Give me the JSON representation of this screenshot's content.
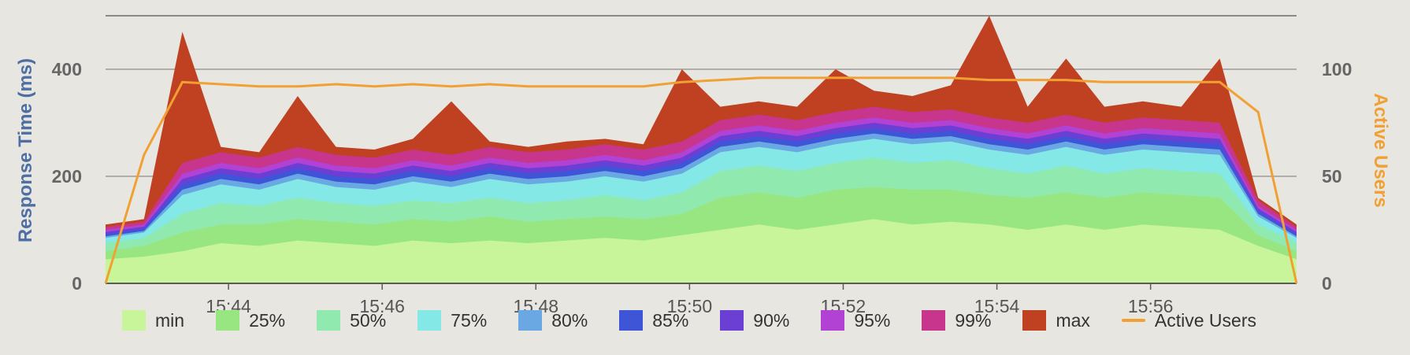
{
  "chart_data": {
    "type": "area",
    "title": "",
    "ylabel": "Response Time (ms)",
    "y2label": "Active Users",
    "ylim": [
      0,
      500
    ],
    "y2lim": [
      0,
      125
    ],
    "yticks": [
      0,
      200,
      400
    ],
    "y2ticks": [
      0,
      50,
      100
    ],
    "xlim": [
      "15:42:24",
      "15:57:54"
    ],
    "xticks": [
      "15:44",
      "15:46",
      "15:48",
      "15:50",
      "15:52",
      "15:54",
      "15:56"
    ],
    "grid": true,
    "legend_position": "bottom",
    "x": [
      "15:42:24",
      "15:42:54",
      "15:43:24",
      "15:43:54",
      "15:44:24",
      "15:44:54",
      "15:45:24",
      "15:45:54",
      "15:46:24",
      "15:46:54",
      "15:47:24",
      "15:47:54",
      "15:48:24",
      "15:48:54",
      "15:49:24",
      "15:49:54",
      "15:50:24",
      "15:50:54",
      "15:51:24",
      "15:51:54",
      "15:52:24",
      "15:52:54",
      "15:53:24",
      "15:53:54",
      "15:54:24",
      "15:54:54",
      "15:55:24",
      "15:55:54",
      "15:56:24",
      "15:56:54",
      "15:57:24",
      "15:57:54"
    ],
    "series": [
      {
        "name": "min",
        "color": "#c8f59a",
        "values": [
          45,
          50,
          60,
          75,
          70,
          80,
          75,
          70,
          80,
          75,
          80,
          75,
          80,
          85,
          80,
          90,
          100,
          110,
          100,
          110,
          120,
          110,
          115,
          110,
          100,
          110,
          100,
          110,
          105,
          100,
          70,
          45
        ]
      },
      {
        "name": "25%",
        "color": "#98e682",
        "values": [
          60,
          70,
          95,
          110,
          110,
          120,
          115,
          110,
          120,
          115,
          125,
          115,
          120,
          125,
          120,
          130,
          160,
          170,
          160,
          175,
          180,
          175,
          175,
          165,
          160,
          170,
          160,
          170,
          165,
          160,
          90,
          60
        ]
      },
      {
        "name": "50%",
        "color": "#90eab0",
        "values": [
          75,
          85,
          130,
          150,
          145,
          160,
          150,
          145,
          155,
          150,
          160,
          150,
          155,
          165,
          155,
          170,
          210,
          220,
          210,
          225,
          235,
          225,
          230,
          215,
          205,
          220,
          205,
          215,
          210,
          205,
          110,
          75
        ]
      },
      {
        "name": "75%",
        "color": "#84e8e6",
        "values": [
          85,
          95,
          165,
          185,
          175,
          195,
          180,
          175,
          190,
          180,
          195,
          185,
          190,
          200,
          190,
          205,
          245,
          255,
          245,
          260,
          270,
          260,
          265,
          250,
          240,
          255,
          240,
          250,
          245,
          240,
          125,
          85
        ]
      },
      {
        "name": "80%",
        "color": "#6aa8e4",
        "values": [
          88,
          98,
          175,
          195,
          185,
          205,
          190,
          185,
          200,
          190,
          205,
          195,
          200,
          210,
          200,
          215,
          255,
          265,
          255,
          270,
          280,
          270,
          275,
          260,
          250,
          265,
          250,
          260,
          255,
          250,
          130,
          88
        ]
      },
      {
        "name": "85%",
        "color": "#3d55d6",
        "values": [
          92,
          102,
          185,
          205,
          195,
          215,
          200,
          195,
          210,
          200,
          215,
          205,
          210,
          220,
          210,
          225,
          265,
          275,
          265,
          280,
          290,
          280,
          285,
          270,
          260,
          275,
          260,
          270,
          265,
          260,
          135,
          92
        ]
      },
      {
        "name": "90%",
        "color": "#6b3fd4",
        "values": [
          96,
          106,
          195,
          215,
          205,
          225,
          210,
          205,
          220,
          210,
          225,
          215,
          220,
          230,
          220,
          235,
          275,
          285,
          275,
          290,
          300,
          290,
          295,
          280,
          270,
          285,
          270,
          280,
          275,
          270,
          140,
          96
        ]
      },
      {
        "name": "95%",
        "color": "#b142d4",
        "values": [
          100,
          110,
          205,
          225,
          215,
          235,
          220,
          215,
          230,
          220,
          235,
          225,
          230,
          240,
          230,
          245,
          285,
          295,
          285,
          300,
          310,
          300,
          305,
          290,
          280,
          295,
          280,
          290,
          285,
          280,
          145,
          100
        ]
      },
      {
        "name": "99%",
        "color": "#c7358c",
        "values": [
          105,
          115,
          225,
          245,
          235,
          255,
          240,
          235,
          250,
          240,
          255,
          245,
          250,
          260,
          250,
          265,
          305,
          315,
          305,
          320,
          330,
          320,
          325,
          310,
          300,
          315,
          300,
          310,
          305,
          300,
          155,
          105
        ]
      },
      {
        "name": "max",
        "color": "#bf4121",
        "values": [
          110,
          120,
          470,
          255,
          245,
          350,
          255,
          250,
          270,
          340,
          265,
          255,
          265,
          270,
          260,
          400,
          330,
          340,
          330,
          400,
          360,
          350,
          370,
          500,
          330,
          420,
          330,
          340,
          330,
          420,
          160,
          110
        ]
      },
      {
        "name": "Active Users",
        "color": "#f1a033",
        "axis": "right",
        "values": [
          0,
          60,
          94,
          93,
          92,
          92,
          93,
          92,
          93,
          92,
          93,
          92,
          92,
          92,
          92,
          94,
          95,
          96,
          96,
          96,
          96,
          96,
          96,
          95,
          95,
          95,
          94,
          94,
          94,
          94,
          80,
          0
        ]
      }
    ]
  }
}
